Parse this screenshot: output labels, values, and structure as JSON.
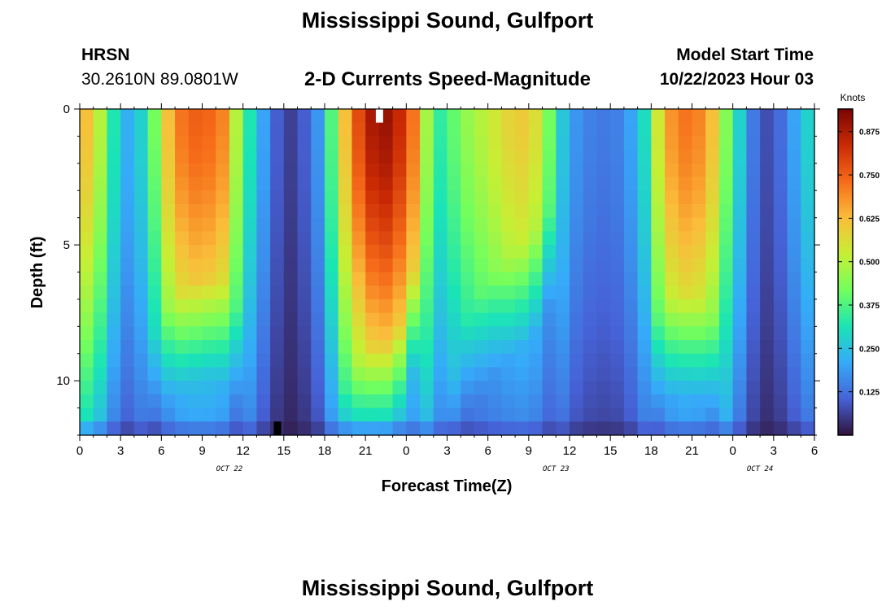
{
  "header": {
    "title": "Mississippi Sound, Gulfport",
    "station": "HRSN",
    "coords": "30.2610N  89.0801W",
    "subtitle": "2-D Currents Speed-Magnitude",
    "model_start_label": "Model Start Time",
    "model_start_value": "10/22/2023 Hour 03"
  },
  "footer": {
    "title": "Mississippi Sound, Gulfport"
  },
  "colors": {
    "scale": [
      "#30123b",
      "#4662d7",
      "#36aaf9",
      "#1ae4b6",
      "#72fe5e",
      "#c7ef34",
      "#fabd3a",
      "#f66b19",
      "#ca2a04",
      "#7a0403"
    ]
  },
  "chart_data": {
    "type": "heatmap",
    "xlabel": "Forecast Time(Z)",
    "ylabel": "Depth (ft)",
    "x_tick_labels": [
      "0",
      "3",
      "6",
      "9",
      "12",
      "15",
      "18",
      "21",
      "0",
      "3",
      "6",
      "9",
      "12",
      "15",
      "18",
      "21",
      "0",
      "3",
      "6"
    ],
    "x_minor_per_major": 3,
    "date_labels": [
      {
        "text": "OCT 22",
        "hour": 11
      },
      {
        "text": "OCT 23",
        "hour": 35
      },
      {
        "text": "OCT 24",
        "hour": 50
      }
    ],
    "x_range_hours": [
      0,
      54
    ],
    "y_range_ft": [
      0,
      12
    ],
    "y_ticks": [
      0,
      5,
      10
    ],
    "colorbar": {
      "unit": "Knots",
      "range": [
        0.0,
        0.94
      ],
      "ticks": [
        "0.125",
        "0.250",
        "0.375",
        "0.500",
        "0.625",
        "0.750",
        "0.875"
      ],
      "tick_values": [
        0.125,
        0.25,
        0.375,
        0.5,
        0.625,
        0.75,
        0.875
      ]
    },
    "surface_speed_knots": {
      "hours": [
        0,
        1,
        2,
        3,
        4,
        5,
        6,
        7,
        8,
        9,
        10,
        11,
        12,
        13,
        14,
        15,
        16,
        17,
        18,
        19,
        20,
        21,
        22,
        23,
        24,
        25,
        26,
        27,
        28,
        29,
        30,
        31,
        32,
        33,
        34,
        35,
        36,
        37,
        38,
        39,
        40,
        41,
        42,
        43,
        44,
        45,
        46,
        47,
        48,
        49,
        50,
        51,
        52,
        53,
        54
      ],
      "values": [
        0.62,
        0.5,
        0.32,
        0.22,
        0.28,
        0.42,
        0.62,
        0.72,
        0.75,
        0.74,
        0.7,
        0.5,
        0.32,
        0.2,
        0.1,
        0.06,
        0.1,
        0.18,
        0.38,
        0.62,
        0.78,
        0.88,
        0.9,
        0.84,
        0.72,
        0.48,
        0.34,
        0.4,
        0.46,
        0.5,
        0.54,
        0.58,
        0.6,
        0.56,
        0.42,
        0.26,
        0.18,
        0.15,
        0.14,
        0.15,
        0.2,
        0.3,
        0.54,
        0.68,
        0.72,
        0.7,
        0.62,
        0.44,
        0.28,
        0.14,
        0.08,
        0.12,
        0.2,
        0.28,
        0.44
      ]
    },
    "max_depth_ft": [
      12,
      12,
      12,
      12,
      12,
      8.3,
      7.3,
      6.7,
      6.3,
      6.2,
      6.4,
      7.3,
      12,
      12,
      12,
      12,
      12,
      12,
      12,
      10.3,
      9.5,
      8.8,
      8.6,
      8.0,
      6.0,
      12,
      12,
      10,
      7.6,
      6.8,
      6.0,
      5.5,
      5.0,
      4.5,
      3.7,
      12,
      12,
      12,
      12,
      12,
      12,
      12,
      7.6,
      7.0,
      6.8,
      7.0,
      7.6,
      12,
      12,
      12,
      12,
      12,
      12,
      12,
      12
    ],
    "markers": [
      {
        "name": "white",
        "hour": 22.0,
        "depth_top": 0.0,
        "depth_bottom": 0.5
      },
      {
        "name": "black",
        "hour": 14.5,
        "depth_top": 11.5,
        "depth_bottom": 12.0
      }
    ]
  }
}
